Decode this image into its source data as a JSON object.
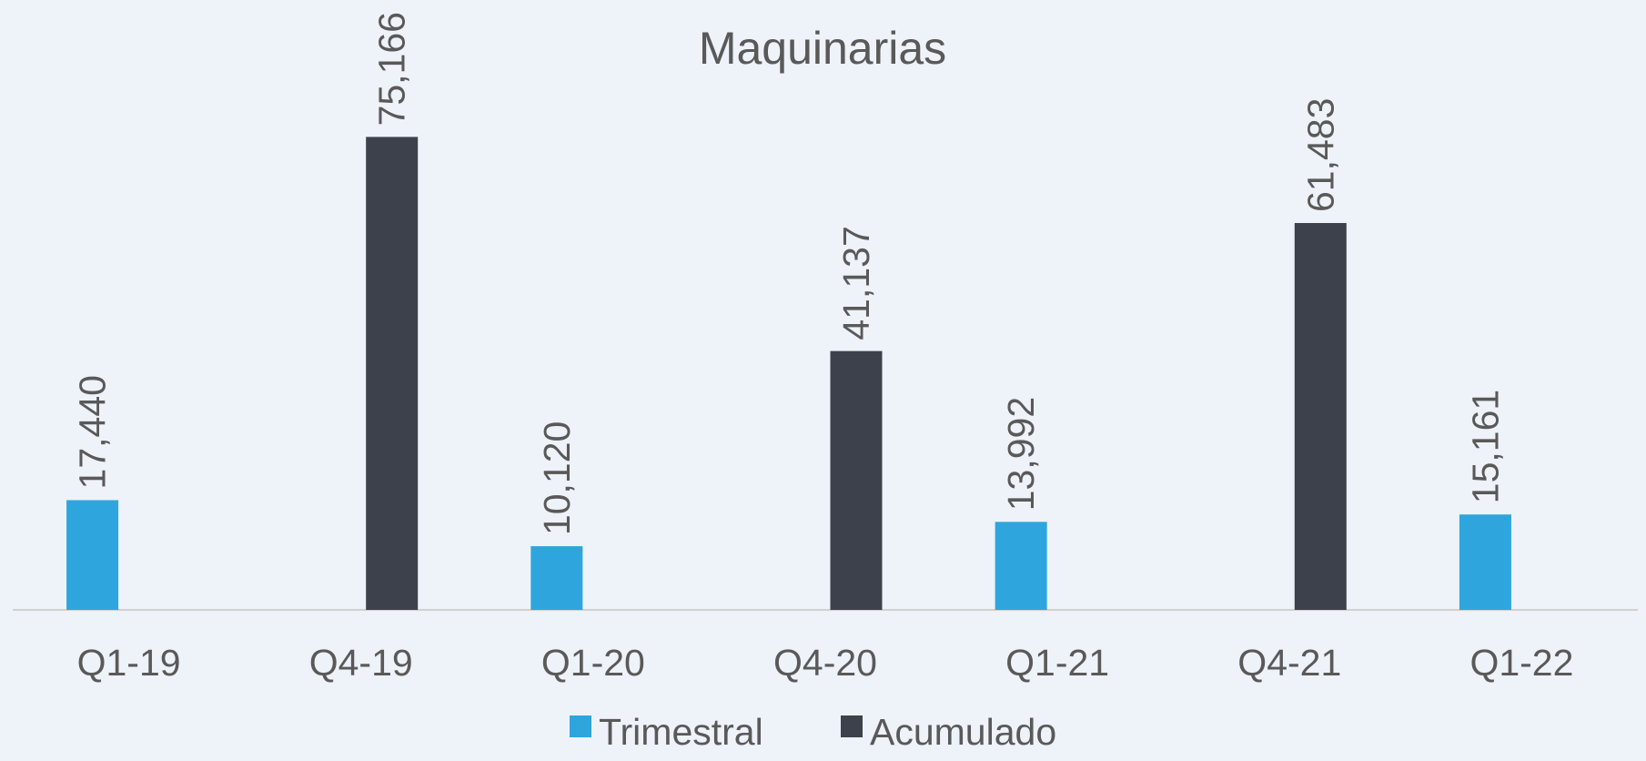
{
  "chart_data": {
    "type": "bar",
    "title": "Maquinarias",
    "categories": [
      "Q1-19",
      "Q4-19",
      "Q1-20",
      "Q4-20",
      "Q1-21",
      "Q4-21",
      "Q1-22"
    ],
    "series": [
      {
        "name": "Trimestral",
        "color": "#2ea6dd",
        "values": [
          17440,
          null,
          10120,
          null,
          13992,
          null,
          15161
        ],
        "value_labels": [
          "17,440",
          null,
          "10,120",
          null,
          "13,992",
          null,
          "15,161"
        ]
      },
      {
        "name": "Acumulado",
        "color": "#3d414b",
        "values": [
          null,
          75166,
          null,
          41137,
          null,
          61483,
          null
        ],
        "value_labels": [
          null,
          "75,166",
          null,
          "41,137",
          null,
          "61,483",
          null
        ]
      }
    ],
    "ylim": [
      0,
      80000
    ],
    "legend": "bottom"
  }
}
